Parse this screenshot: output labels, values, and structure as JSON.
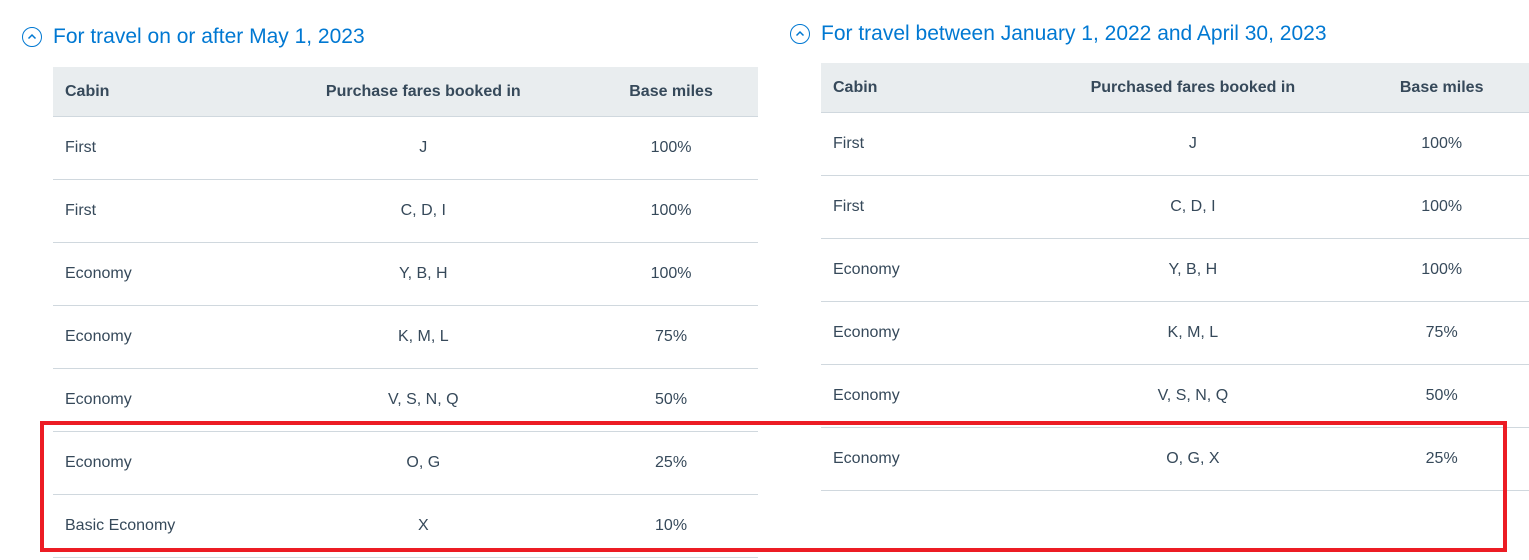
{
  "left": {
    "heading": "For travel on or after May 1, 2023",
    "columns": [
      "Cabin",
      "Purchase fares booked in",
      "Base miles"
    ],
    "rows": [
      [
        "First",
        "J",
        "100%"
      ],
      [
        "First",
        "C, D, I",
        "100%"
      ],
      [
        "Economy",
        "Y, B, H",
        "100%"
      ],
      [
        "Economy",
        "K, M, L",
        "75%"
      ],
      [
        "Economy",
        "V, S, N, Q",
        "50%"
      ],
      [
        "Economy",
        "O, G",
        "25%"
      ],
      [
        "Basic Economy",
        "X",
        "10%"
      ]
    ]
  },
  "right": {
    "heading": "For travel between January 1, 2022 and April 30, 2023",
    "columns": [
      "Cabin",
      "Purchased fares booked in",
      "Base miles"
    ],
    "rows": [
      [
        "First",
        "J",
        "100%"
      ],
      [
        "First",
        "C, D, I",
        "100%"
      ],
      [
        "Economy",
        "Y, B, H",
        "100%"
      ],
      [
        "Economy",
        "K, M, L",
        "75%"
      ],
      [
        "Economy",
        "V, S, N, Q",
        "50%"
      ],
      [
        "Economy",
        "O, G, X",
        "25%"
      ]
    ]
  },
  "colors": {
    "accent": "#0078d2",
    "highlight": "#ec1c24",
    "header_bg": "#e9edef"
  },
  "icons": {
    "toggle": "chevron-up-circle-icon"
  }
}
